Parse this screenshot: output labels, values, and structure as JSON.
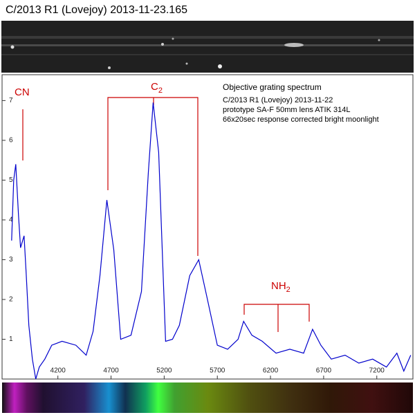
{
  "chart_data": {
    "type": "line",
    "title": "C/2013 R1 (Lovejoy)   2013-11-23.165",
    "notes": [
      "Objective grating spectrum",
      "C/2013  R1 (Lovejoy)  2013-11-22",
      "prototype SA-F  50mm lens  ATIK 314L",
      "66x20sec response corrected bright moonlight"
    ],
    "annotations": [
      {
        "text": "CN"
      },
      {
        "text": "C",
        "subscript": "2"
      },
      {
        "text": "NH",
        "subscript": "2"
      }
    ],
    "x": [
      3765,
      3784,
      3804,
      3830,
      3849,
      3882,
      3901,
      3927,
      3960,
      3992,
      4025,
      4077,
      4142,
      4239,
      4369,
      4466,
      4531,
      4596,
      4661,
      4726,
      4791,
      4888,
      4986,
      5051,
      5096,
      5148,
      5213,
      5278,
      5343,
      5440,
      5525,
      5603,
      5700,
      5797,
      5895,
      5947,
      6025,
      6122,
      6252,
      6382,
      6512,
      6596,
      6674,
      6772,
      6902,
      7031,
      7161,
      7291,
      7389,
      7454,
      7519
    ],
    "series": [
      {
        "color": "#0000cc",
        "values": [
          3.48,
          5.0,
          5.4,
          4.1,
          3.3,
          3.6,
          2.7,
          1.35,
          0.5,
          0.0,
          0.3,
          0.5,
          0.85,
          0.95,
          0.85,
          0.6,
          1.2,
          2.6,
          4.5,
          3.25,
          1.0,
          1.1,
          2.2,
          5.2,
          6.95,
          5.7,
          0.95,
          1.0,
          1.35,
          2.6,
          3.0,
          2.05,
          0.85,
          0.75,
          1.0,
          1.45,
          1.1,
          0.95,
          0.65,
          0.75,
          0.65,
          1.25,
          0.85,
          0.5,
          0.6,
          0.4,
          0.5,
          0.3,
          0.65,
          0.2,
          0.6
        ]
      }
    ],
    "xlim": [
      3675,
      7540
    ],
    "xticks": [
      4200,
      4700,
      5200,
      5700,
      6200,
      6700,
      7200
    ],
    "ylim": [
      0,
      7.65
    ],
    "yticks": [
      1,
      2,
      3,
      4,
      5,
      6,
      7
    ]
  }
}
